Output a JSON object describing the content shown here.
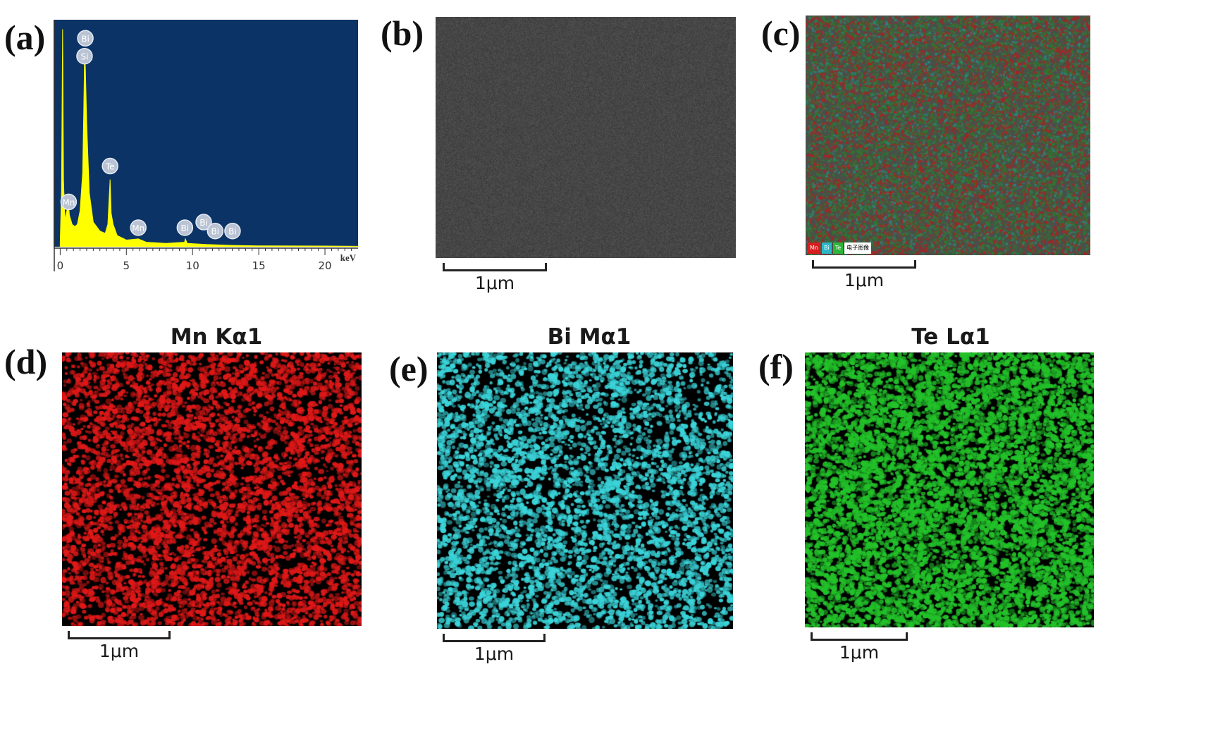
{
  "panels": {
    "a": {
      "label": "(a)"
    },
    "b": {
      "label": "(b)"
    },
    "c": {
      "label": "(c)"
    },
    "d": {
      "label": "(d)"
    },
    "e": {
      "label": "(e)"
    },
    "f": {
      "label": "(f)"
    }
  },
  "chart_data": {
    "type": "line",
    "title": "",
    "xlabel": "keV",
    "ylabel": "",
    "xlim": [
      -0.5,
      22.5
    ],
    "x_ticks": [
      "0",
      "5",
      "10",
      "15",
      "20"
    ],
    "background": "#0b3366",
    "line_color": "#ffff00",
    "grid": false,
    "series": [
      {
        "values": [
          [
            0.0,
            0.02
          ],
          [
            0.1,
            0.25
          ],
          [
            0.18,
            0.97
          ],
          [
            0.25,
            0.3
          ],
          [
            0.35,
            0.12
          ],
          [
            0.5,
            0.16
          ],
          [
            0.64,
            0.18
          ],
          [
            0.7,
            0.14
          ],
          [
            0.9,
            0.1
          ],
          [
            1.1,
            0.09
          ],
          [
            1.3,
            0.1
          ],
          [
            1.5,
            0.16
          ],
          [
            1.7,
            0.33
          ],
          [
            1.78,
            0.6
          ],
          [
            1.84,
            0.86
          ],
          [
            1.9,
            0.8
          ],
          [
            2.0,
            0.55
          ],
          [
            2.2,
            0.24
          ],
          [
            2.5,
            0.11
          ],
          [
            3.0,
            0.07
          ],
          [
            3.4,
            0.06
          ],
          [
            3.6,
            0.1
          ],
          [
            3.77,
            0.3
          ],
          [
            3.85,
            0.15
          ],
          [
            4.0,
            0.1
          ],
          [
            4.3,
            0.05
          ],
          [
            5.0,
            0.03
          ],
          [
            5.9,
            0.035
          ],
          [
            6.5,
            0.02
          ],
          [
            8.0,
            0.015
          ],
          [
            9.4,
            0.02
          ],
          [
            9.45,
            0.035
          ],
          [
            9.6,
            0.015
          ],
          [
            11.0,
            0.01
          ],
          [
            13.0,
            0.006
          ],
          [
            15.0,
            0.004
          ],
          [
            20.0,
            0.003
          ],
          [
            22.5,
            0.002
          ]
        ]
      }
    ],
    "peak_labels": [
      {
        "text": "Bi",
        "x": 1.9,
        "y": 0.93
      },
      {
        "text": "Si",
        "x": 1.84,
        "y": 0.85
      },
      {
        "text": "Te",
        "x": 3.77,
        "y": 0.36
      },
      {
        "text": "Mn",
        "x": 0.64,
        "y": 0.2
      },
      {
        "text": "Mn",
        "x": 5.9,
        "y": 0.085
      },
      {
        "text": "Bi",
        "x": 9.42,
        "y": 0.085
      },
      {
        "text": "Bi",
        "x": 10.84,
        "y": 0.11
      },
      {
        "text": "Bi",
        "x": 11.71,
        "y": 0.07
      },
      {
        "text": "Bi",
        "x": 13.02,
        "y": 0.07
      }
    ]
  },
  "sem_image": {
    "color": "#464646"
  },
  "overlay_map": {
    "colors": [
      "#b02020",
      "#2a8a8a",
      "#2e7a2e"
    ],
    "legend": [
      {
        "text": "Mn",
        "color": "#d81e1e"
      },
      {
        "text": "Bi",
        "color": "#2ab7c8"
      },
      {
        "text": "Te",
        "color": "#2db53a"
      },
      {
        "text": "电子图像",
        "color": "#ffffff"
      }
    ]
  },
  "maps": {
    "mn": {
      "title": "Mn Kα1",
      "color": "#e01818"
    },
    "bi": {
      "title": "Bi Mα1",
      "color": "#3ad4d9"
    },
    "te": {
      "title": "Te Lα1",
      "color": "#23c22a"
    }
  },
  "scalebars": {
    "b": "1μm",
    "c": "1μm",
    "d": "1μm",
    "e": "1μm",
    "f": "1μm"
  }
}
